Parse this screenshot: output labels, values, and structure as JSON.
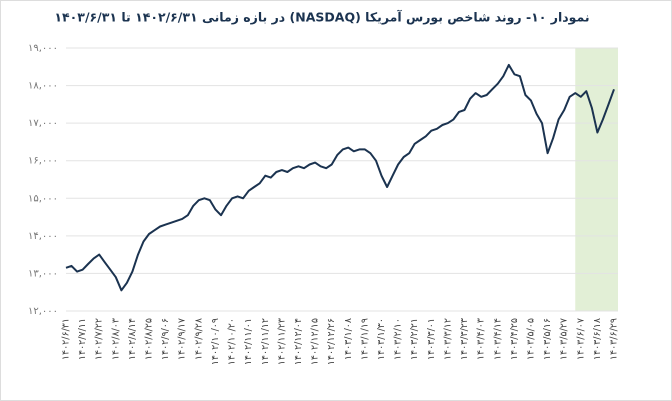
{
  "chart_data": {
    "type": "line",
    "title": "نمودار ۱۰- روند شاخص بورس آمریکا (NASDAQ) در بازه زمانی ۱۴۰۲/۶/۳۱ تا ۱۴۰۳/۶/۳۱",
    "categories": [
      "۱۴۰۲/۶/۳۱",
      null,
      null,
      "۱۴۰۲/۷/۱۱",
      null,
      null,
      "۱۴۰۲/۷/۲۲",
      null,
      null,
      "۱۴۰۲/۸/۰۳",
      null,
      null,
      "۱۴۰۲/۸/۱۴",
      null,
      null,
      "۱۴۰۲/۸/۲۵",
      null,
      null,
      "۱۴۰۲/۹/۰۶",
      null,
      null,
      "۱۴۰۲/۹/۱۷",
      null,
      null,
      "۱۴۰۲/۹/۲۸",
      null,
      null,
      "۱۴۰۲/۱۰/۰۹",
      null,
      null,
      "۱۴۰۲/۱۰/۲۰",
      null,
      null,
      "۱۴۰۲/۱۱/۰۱",
      null,
      null,
      "۱۴۰۲/۱۱/۱۲",
      null,
      null,
      "۱۴۰۲/۱۱/۲۳",
      null,
      null,
      "۱۴۰۲/۱۲/۰۴",
      null,
      null,
      "۱۴۰۲/۱۲/۱۵",
      null,
      null,
      "۱۴۰۲/۱۲/۲۶",
      null,
      null,
      "۱۴۰۳/۱/۰۸",
      null,
      null,
      "۱۴۰۳/۱/۱۹",
      null,
      null,
      "۱۴۰۳/۱/۳۰",
      null,
      null,
      "۱۴۰۳/۲/۱۰",
      null,
      null,
      "۱۴۰۳/۲/۲۱",
      null,
      null,
      "۱۴۰۳/۳/۰۱",
      null,
      null,
      "۱۴۰۳/۳/۱۲",
      null,
      null,
      "۱۴۰۳/۳/۲۳",
      null,
      null,
      "۱۴۰۳/۴/۰۳",
      null,
      null,
      "۱۴۰۳/۴/۱۴",
      null,
      null,
      "۱۴۰۳/۴/۲۵",
      null,
      null,
      "۱۴۰۳/۵/۰۵",
      null,
      null,
      "۱۴۰۳/۵/۱۶",
      null,
      null,
      "۱۴۰۳/۵/۲۷",
      null,
      null,
      "۱۴۰۳/۶/۰۷",
      null,
      null,
      "۱۴۰۳/۶/۱۸",
      null,
      null,
      "۱۴۰۳/۶/۲۹"
    ],
    "values": [
      13150,
      13200,
      13050,
      13100,
      13250,
      13400,
      13500,
      13300,
      13100,
      12900,
      12550,
      12750,
      13050,
      13500,
      13850,
      14050,
      14150,
      14250,
      14300,
      14350,
      14400,
      14450,
      14550,
      14800,
      14950,
      15000,
      14950,
      14700,
      14550,
      14800,
      15000,
      15050,
      15000,
      15200,
      15300,
      15400,
      15600,
      15550,
      15700,
      15750,
      15700,
      15800,
      15850,
      15800,
      15900,
      15950,
      15850,
      15800,
      15900,
      16150,
      16300,
      16350,
      16250,
      16300,
      16300,
      16200,
      16000,
      15600,
      15300,
      15600,
      15900,
      16100,
      16200,
      16450,
      16550,
      16650,
      16800,
      16850,
      16950,
      17000,
      17100,
      17300,
      17350,
      17650,
      17800,
      17700,
      17750,
      17900,
      18050,
      18250,
      18550,
      18300,
      18250,
      17750,
      17600,
      17250,
      17000,
      16200,
      16600,
      17100,
      17350,
      17700,
      17800,
      17700,
      17850,
      17400,
      16750,
      17100,
      17500,
      17900
    ],
    "color": "#1b3350",
    "ylim": [
      12000,
      19000
    ],
    "yticks": [
      {
        "value": 12000,
        "label": "۱۲,۰۰۰"
      },
      {
        "value": 13000,
        "label": "۱۳,۰۰۰"
      },
      {
        "value": 14000,
        "label": "۱۴,۰۰۰"
      },
      {
        "value": 15000,
        "label": "۱۵,۰۰۰"
      },
      {
        "value": 16000,
        "label": "۱۶,۰۰۰"
      },
      {
        "value": 17000,
        "label": "۱۷,۰۰۰"
      },
      {
        "value": 18000,
        "label": "۱۸,۰۰۰"
      },
      {
        "value": 19000,
        "label": "۱۹,۰۰۰"
      }
    ],
    "grid": true,
    "highlight": {
      "from": 92,
      "color": "#e2efd6"
    }
  }
}
